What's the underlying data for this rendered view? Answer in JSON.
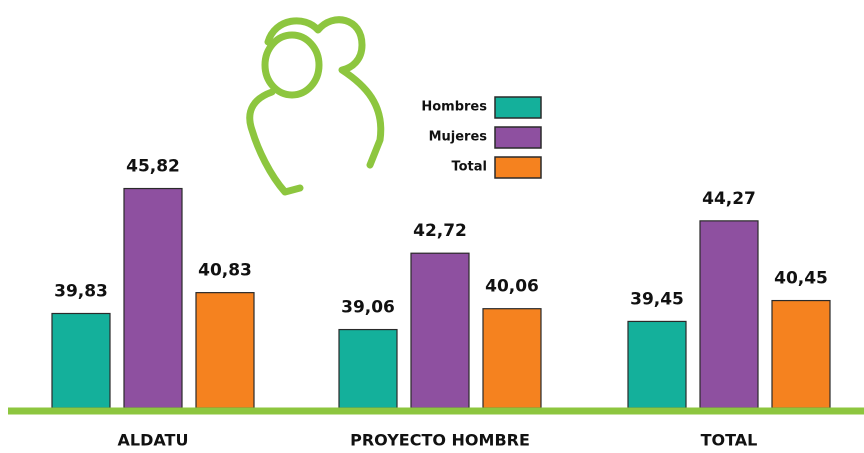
{
  "chart_data": {
    "type": "bar",
    "categories": [
      "ALDATU",
      "PROYECTO HOMBRE",
      "TOTAL"
    ],
    "series": [
      {
        "name": "Hombres",
        "color": "#14b09b",
        "values": [
          39.83,
          39.06,
          39.45
        ],
        "value_labels": [
          "39,83",
          "39,06",
          "39,45"
        ]
      },
      {
        "name": "Mujeres",
        "color": "#8e50a0",
        "values": [
          45.82,
          42.72,
          44.27
        ],
        "value_labels": [
          "45,82",
          "42,72",
          "44,27"
        ]
      },
      {
        "name": "Total",
        "color": "#f5821f",
        "values": [
          40.83,
          40.06,
          40.45
        ],
        "value_labels": [
          "40,83",
          "40,06",
          "40,45"
        ]
      }
    ],
    "ylim": [
      35.3,
      46.9
    ]
  }
}
